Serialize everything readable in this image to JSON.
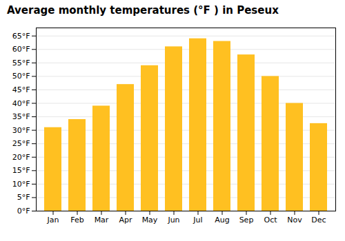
{
  "chart_data": {
    "type": "bar",
    "title": "Average monthly temperatures (°F ) in Peseux",
    "categories": [
      "Jan",
      "Feb",
      "Mar",
      "Apr",
      "May",
      "Jun",
      "Jul",
      "Aug",
      "Sep",
      "Oct",
      "Nov",
      "Dec"
    ],
    "values": [
      31,
      34,
      39,
      47,
      54,
      61,
      64,
      63,
      58,
      50,
      40,
      32.5
    ],
    "color": "#FFC021",
    "ylim": [
      0,
      68
    ],
    "yticks": [
      {
        "value": 0,
        "label": "0°F"
      },
      {
        "value": 5,
        "label": "5°F"
      },
      {
        "value": 10,
        "label": "10°F"
      },
      {
        "value": 15,
        "label": "15°F"
      },
      {
        "value": 20,
        "label": "20°F"
      },
      {
        "value": 25,
        "label": "25°F"
      },
      {
        "value": 30,
        "label": "30°F"
      },
      {
        "value": 35,
        "label": "35°F"
      },
      {
        "value": 40,
        "label": "40°F"
      },
      {
        "value": 45,
        "label": "45°F"
      },
      {
        "value": 50,
        "label": "50°F"
      },
      {
        "value": 55,
        "label": "55°F"
      },
      {
        "value": 60,
        "label": "60°F"
      },
      {
        "value": 65,
        "label": "65°F"
      }
    ],
    "grid": true
  }
}
